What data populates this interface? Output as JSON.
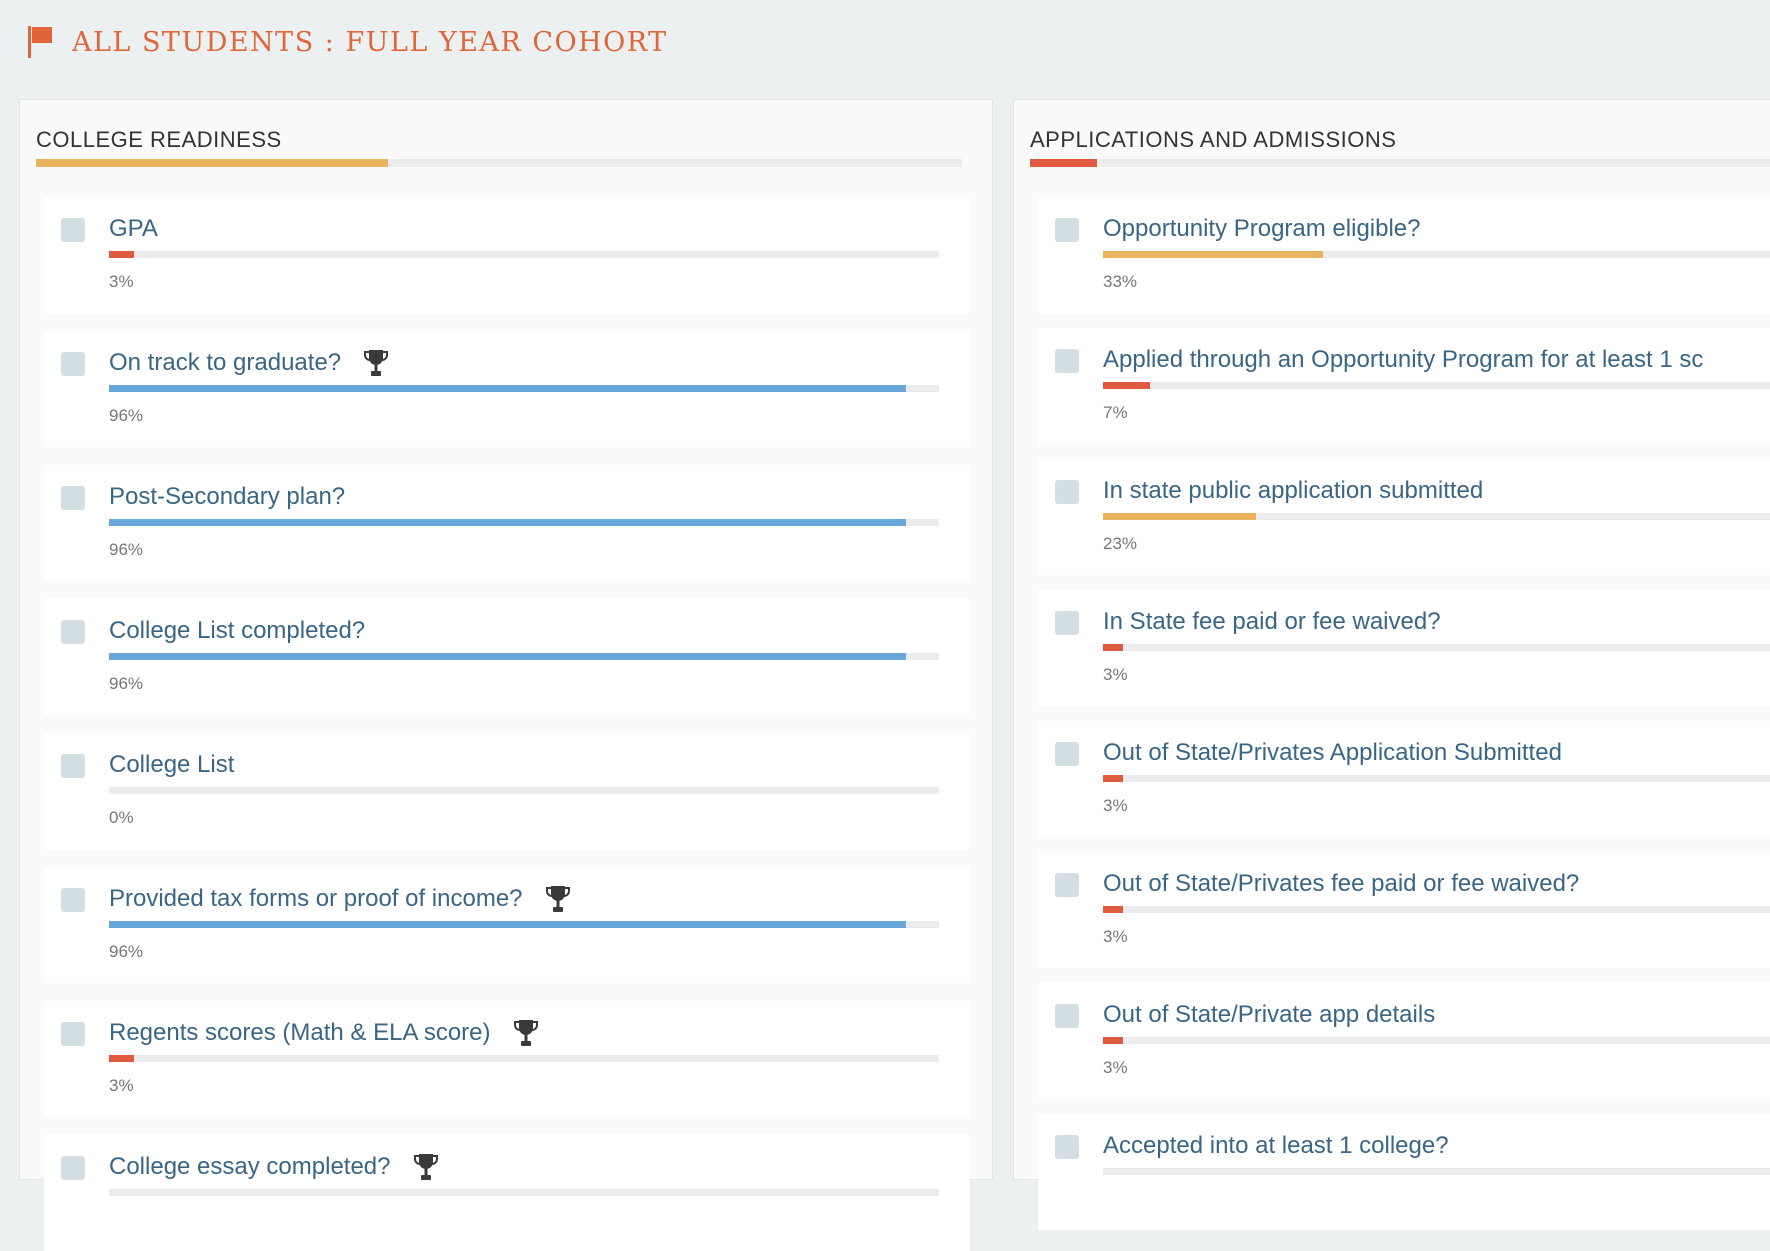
{
  "header": {
    "title": "ALL STUDENTS : FULL YEAR COHORT",
    "icon": "flag-icon",
    "color": "#e0663a"
  },
  "colors": {
    "red": "#e05a42",
    "yellow": "#eab35e",
    "blue": "#6aa8dc",
    "checkbox": "#d3dfe2",
    "label": "#3a6585"
  },
  "panels": [
    {
      "title": "COLLEGE READINESS",
      "progress": 38,
      "progress_color": "#eab35e",
      "items": [
        {
          "label": "GPA",
          "percent": 3,
          "pct_label": "3%",
          "trophy": false
        },
        {
          "label": "On track to graduate?",
          "percent": 96,
          "pct_label": "96%",
          "trophy": true
        },
        {
          "label": "Post-Secondary plan?",
          "percent": 96,
          "pct_label": "96%",
          "trophy": false
        },
        {
          "label": "College List completed?",
          "percent": 96,
          "pct_label": "96%",
          "trophy": false
        },
        {
          "label": "College List",
          "percent": 0,
          "pct_label": "0%",
          "trophy": false
        },
        {
          "label": "Provided tax forms or proof of income?",
          "percent": 96,
          "pct_label": "96%",
          "trophy": true
        },
        {
          "label": "Regents scores (Math & ELA score)",
          "percent": 3,
          "pct_label": "3%",
          "trophy": true
        },
        {
          "label": "College essay completed?",
          "percent": null,
          "pct_label": "",
          "trophy": true
        }
      ]
    },
    {
      "title": "APPLICATIONS AND ADMISSIONS",
      "progress": 9,
      "progress_color": "#e05a42",
      "items": [
        {
          "label": "Opportunity Program eligible?",
          "percent": 33,
          "pct_label": "33%",
          "trophy": false
        },
        {
          "label": "Applied through an Opportunity Program for at least 1 sc",
          "percent": 7,
          "pct_label": "7%",
          "trophy": false
        },
        {
          "label": "In state public application submitted",
          "percent": 23,
          "pct_label": "23%",
          "trophy": false
        },
        {
          "label": "In State fee paid or fee waived?",
          "percent": 3,
          "pct_label": "3%",
          "trophy": false
        },
        {
          "label": "Out of State/Privates Application Submitted",
          "percent": 3,
          "pct_label": "3%",
          "trophy": false
        },
        {
          "label": "Out of State/Privates fee paid or fee waived?",
          "percent": 3,
          "pct_label": "3%",
          "trophy": false
        },
        {
          "label": "Out of State/Private app details",
          "percent": 3,
          "pct_label": "3%",
          "trophy": false
        },
        {
          "label": "Accepted into at least 1 college?",
          "percent": null,
          "pct_label": "",
          "trophy": false
        }
      ]
    }
  ]
}
